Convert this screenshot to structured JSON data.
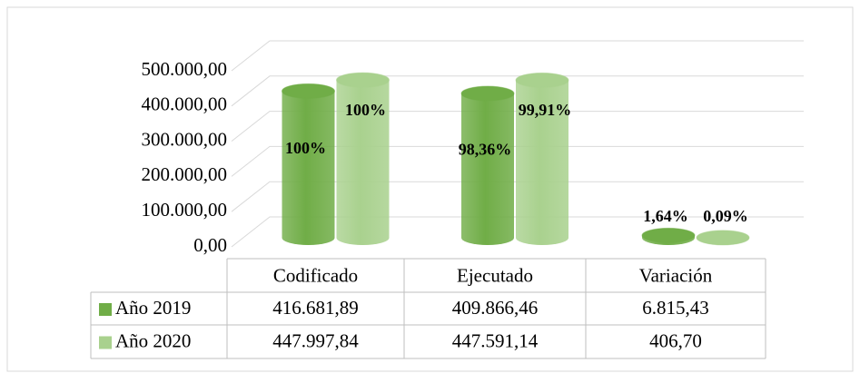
{
  "chart_data": {
    "type": "bar3d",
    "categories": [
      "Codificado",
      "Ejecutado",
      "Variación"
    ],
    "series": [
      {
        "name": "Año 2019",
        "color": "#70ad47",
        "values": [
          416681.89,
          409866.46,
          6815.43
        ],
        "value_labels": [
          "416.681,89",
          "409.866,46",
          "6.815,43"
        ],
        "percentages": [
          100,
          98.36,
          1.64
        ],
        "percentage_labels": [
          "100%",
          "98,36%",
          "1,64%"
        ]
      },
      {
        "name": "Año 2020",
        "color": "#a9d18e",
        "values": [
          447997.84,
          447591.14,
          406.7
        ],
        "value_labels": [
          "447.997,84",
          "447.591,14",
          "406,70"
        ],
        "percentages": [
          100,
          99.91,
          0.09
        ],
        "percentage_labels": [
          "100%",
          "99,91%",
          "0,09%"
        ]
      }
    ],
    "ylim": [
      0,
      500000
    ],
    "yticks": [
      {
        "value": 0,
        "label": "0,00"
      },
      {
        "value": 100000,
        "label": "100.000,00"
      },
      {
        "value": 200000,
        "label": "200.000,00"
      },
      {
        "value": 300000,
        "label": "300.000,00"
      },
      {
        "value": 400000,
        "label": "400.000,00"
      },
      {
        "value": 500000,
        "label": "500.000,00"
      }
    ],
    "grid": true,
    "legend": "table"
  }
}
